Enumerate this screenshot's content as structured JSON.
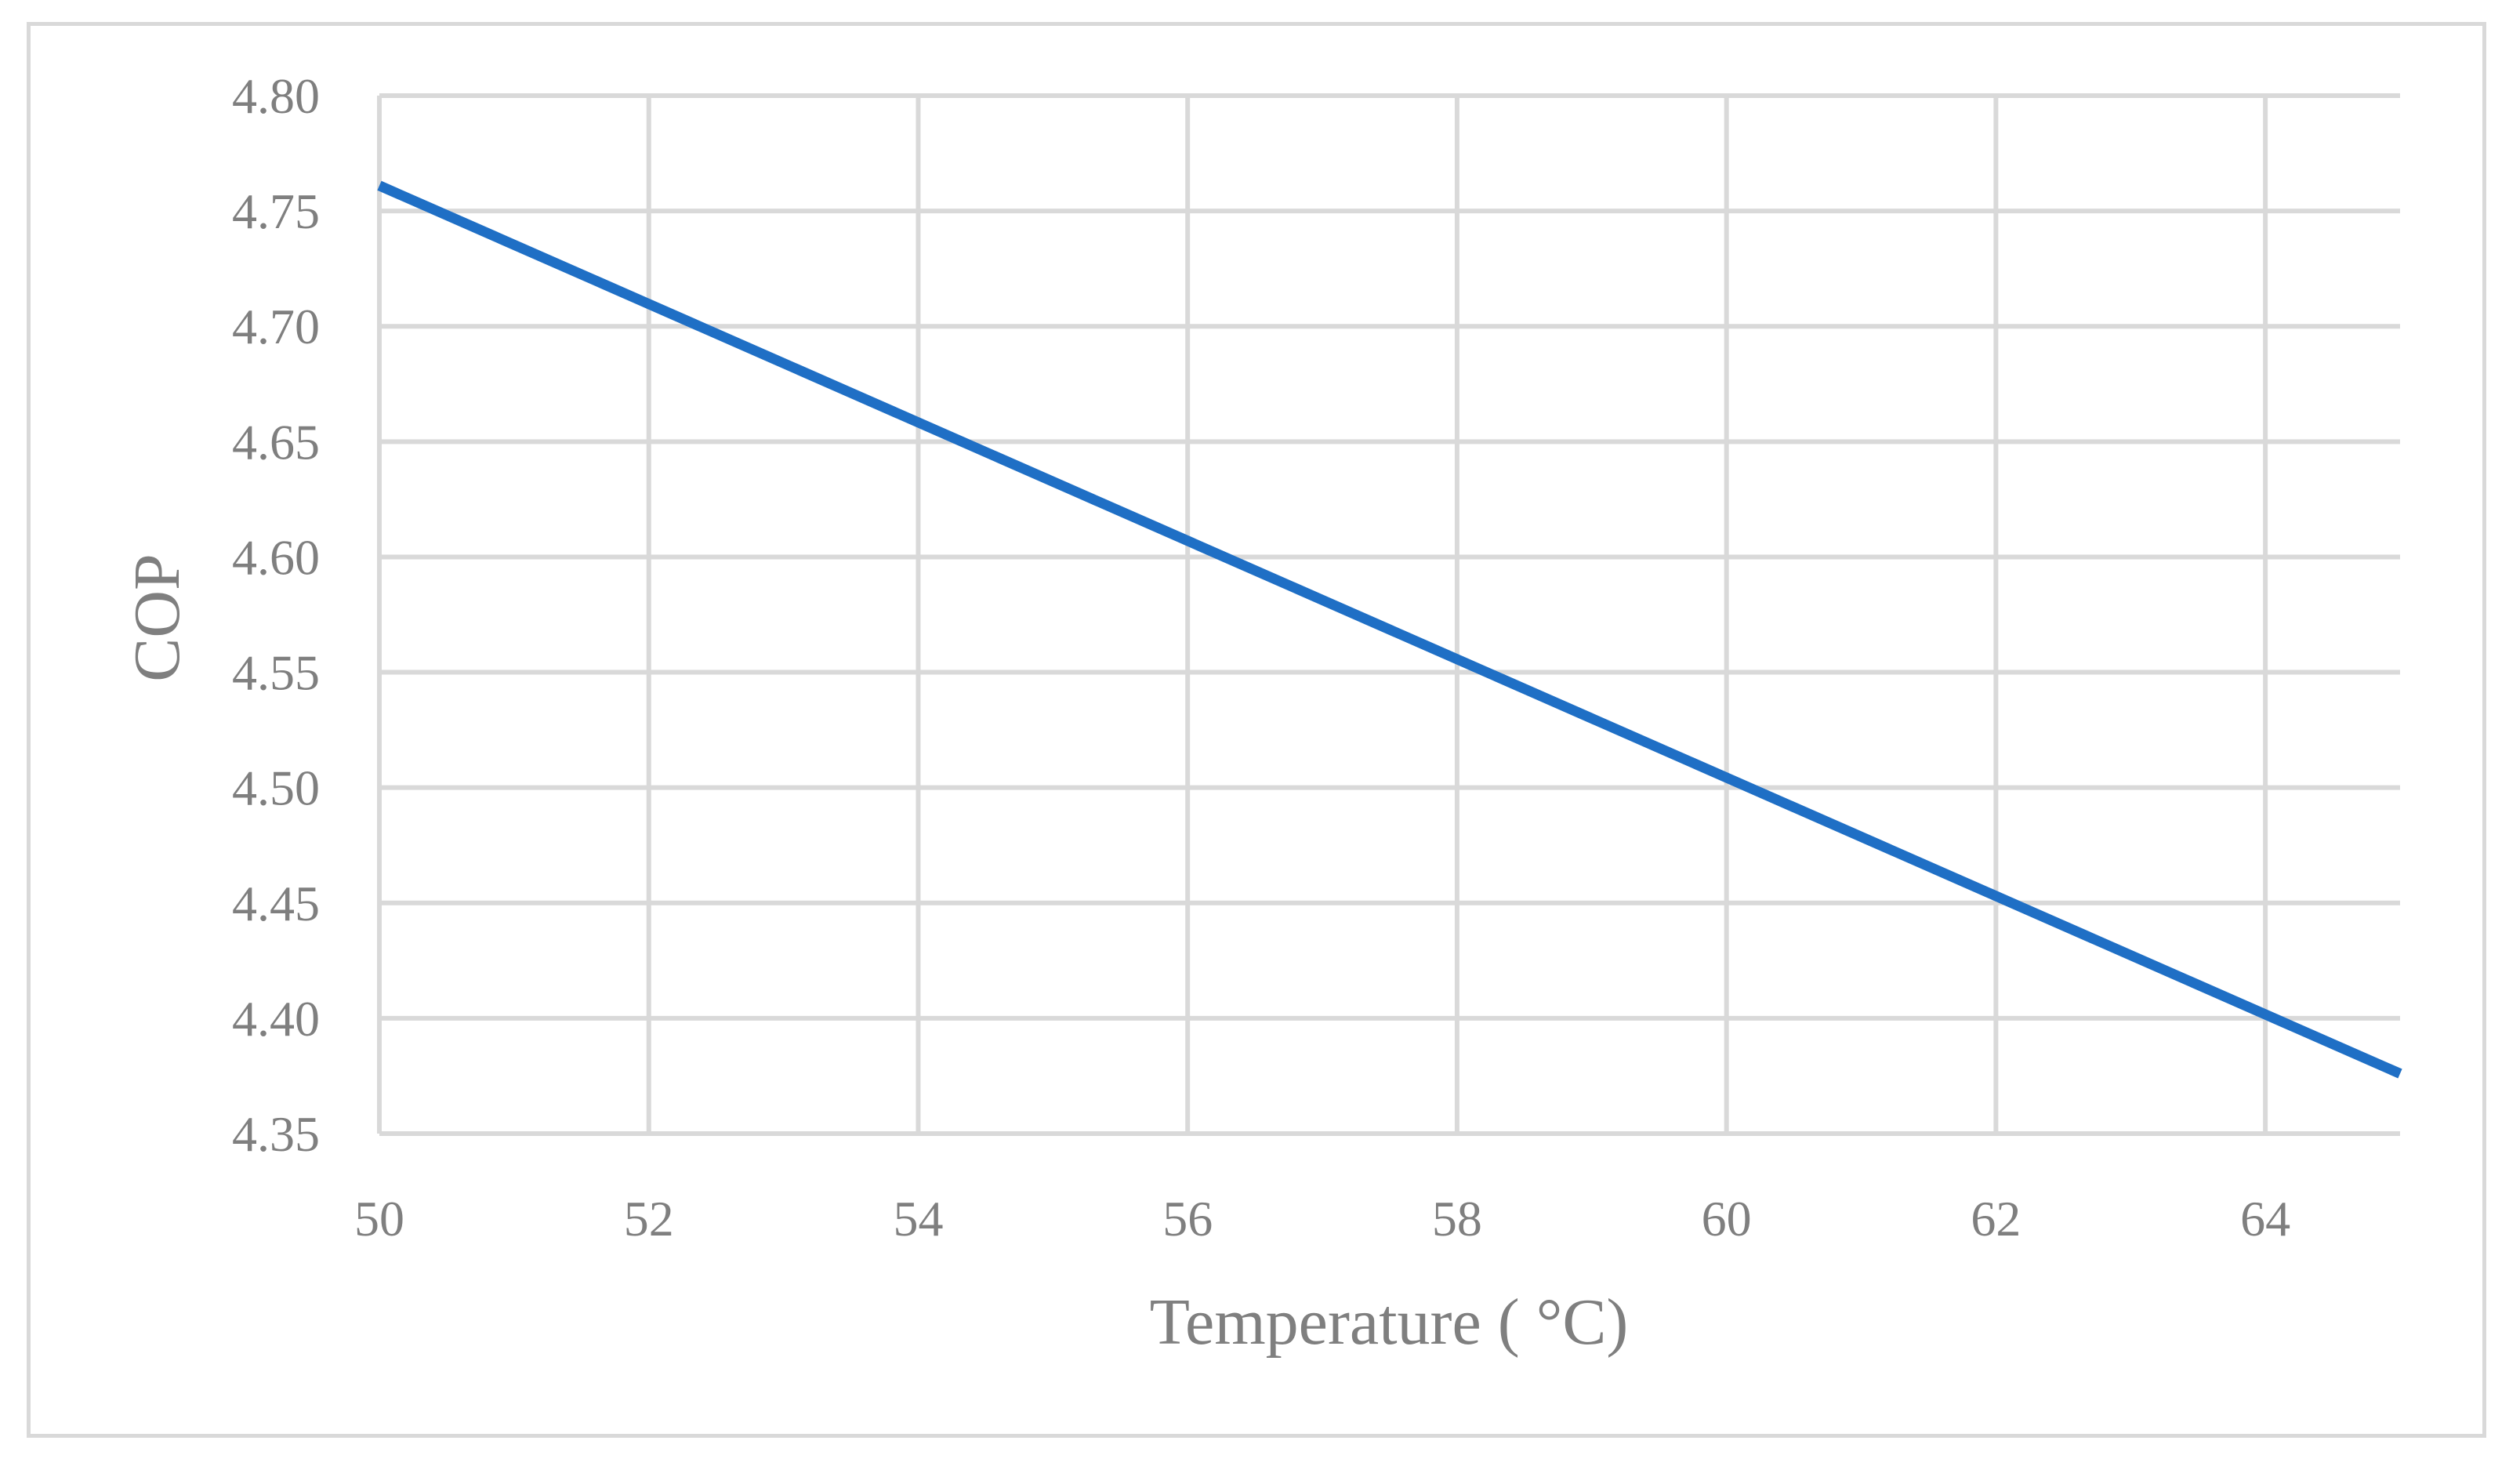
{
  "chart_data": {
    "type": "line",
    "title": "",
    "xlabel": "Temperature ( °C)",
    "ylabel": "COP",
    "x_ticks": [
      50,
      52,
      54,
      56,
      58,
      60,
      62,
      64
    ],
    "x_tick_labels": [
      "50",
      "52",
      "54",
      "56",
      "58",
      "60",
      "62",
      "64"
    ],
    "y_ticks": [
      4.35,
      4.4,
      4.45,
      4.5,
      4.55,
      4.6,
      4.65,
      4.7,
      4.75,
      4.8
    ],
    "y_tick_labels": [
      "4.35",
      "4.40",
      "4.45",
      "4.50",
      "4.55",
      "4.60",
      "4.65",
      "4.70",
      "4.75",
      "4.80"
    ],
    "xlim": [
      50,
      65
    ],
    "ylim": [
      4.35,
      4.8
    ],
    "grid": true,
    "legend": "none",
    "series": [
      {
        "name": "COP",
        "color": "#1f6fc5",
        "x": [
          50,
          65
        ],
        "y": [
          4.761,
          4.376
        ]
      }
    ],
    "colors": {
      "grid": "#d9d9d9",
      "text": "#7f7f7f",
      "frame": "#d9d9d9"
    }
  }
}
